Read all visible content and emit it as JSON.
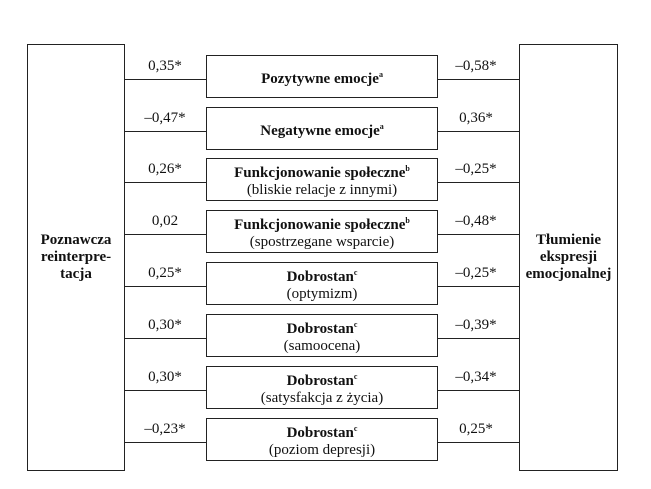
{
  "left_box": {
    "label": "Poznawcza\nreinterpre-\ntacja"
  },
  "right_box": {
    "label": "Tłumienie\nekspresji\nemocjonalnej"
  },
  "rows": [
    {
      "title": "Pozytywne emocje",
      "sup": "a",
      "subtitle": "",
      "left_value": "0,35*",
      "right_value": "–0,58*"
    },
    {
      "title": "Negatywne emocje",
      "sup": "a",
      "subtitle": "",
      "left_value": "–0,47*",
      "right_value": "0,36*"
    },
    {
      "title": "Funkcjonowanie społeczne",
      "sup": "b",
      "subtitle": "(bliskie relacje z innymi)",
      "left_value": "0,26*",
      "right_value": "–0,25*"
    },
    {
      "title": "Funkcjonowanie społeczne",
      "sup": "b",
      "subtitle": "(spostrzegane wsparcie)",
      "left_value": "0,02",
      "right_value": "–0,48*"
    },
    {
      "title": "Dobrostan",
      "sup": "c",
      "subtitle": "(optymizm)",
      "left_value": "0,25*",
      "right_value": "–0,25*"
    },
    {
      "title": "Dobrostan",
      "sup": "c",
      "subtitle": "(samoocena)",
      "left_value": "0,30*",
      "right_value": "–0,39*"
    },
    {
      "title": "Dobrostan",
      "sup": "c",
      "subtitle": "(satysfakcja z życia)",
      "left_value": "0,30*",
      "right_value": "–0,34*"
    },
    {
      "title": "Dobrostan",
      "sup": "c",
      "subtitle": "(poziom depresji)",
      "left_value": "–0,23*",
      "right_value": "0,25*"
    }
  ]
}
